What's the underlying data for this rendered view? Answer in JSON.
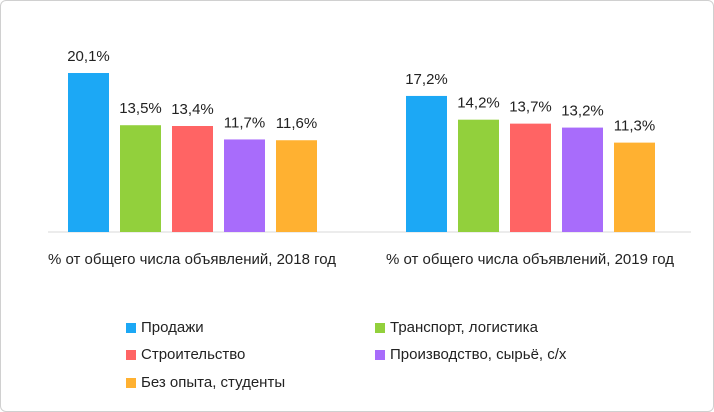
{
  "chart_data": {
    "type": "bar",
    "categories": [
      "% от общего числа объявлений, 2018 год",
      "% от общего числа объявлений, 2019 год"
    ],
    "series": [
      {
        "name": "Продажи",
        "color": "#1ca8f5",
        "values": [
          20.1,
          17.2
        ],
        "value_labels": [
          "20,1%",
          "17,2%"
        ]
      },
      {
        "name": "Транспорт, логистика",
        "color": "#92d03c",
        "values": [
          13.5,
          14.2
        ],
        "value_labels": [
          "13,5%",
          "14,2%"
        ]
      },
      {
        "name": "Строительство",
        "color": "#ff6464",
        "values": [
          13.4,
          13.7
        ],
        "value_labels": [
          "13,4%",
          "13,7%"
        ]
      },
      {
        "name": "Производство, сырьё, с/х",
        "color": "#a86cfb",
        "values": [
          11.7,
          13.2
        ],
        "value_labels": [
          "11,7%",
          "13,2%"
        ]
      },
      {
        "name": "Без опыта, студенты",
        "color": "#ffb131",
        "values": [
          11.6,
          11.3
        ],
        "value_labels": [
          "11,6%",
          "11,3%"
        ]
      }
    ]
  }
}
